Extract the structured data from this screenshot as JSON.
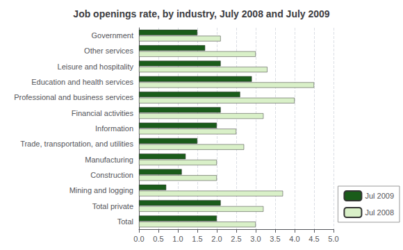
{
  "chart_data": {
    "type": "bar",
    "orientation": "horizontal",
    "title": "Job openings rate, by industry, July 2008 and July 2009",
    "categories": [
      "Total",
      "Total private",
      "Mining and logging",
      "Construction",
      "Manufacturing",
      "Trade, transportation, and utilities",
      "Information",
      "Financial activities",
      "Professional and business services",
      "Education and health services",
      "Leisure and hospitality",
      "Other services",
      "Government"
    ],
    "series": [
      {
        "name": "Jul 2009",
        "color": "#1a5c1a",
        "values": [
          2.0,
          2.1,
          0.7,
          1.1,
          1.2,
          1.5,
          2.0,
          2.1,
          2.6,
          2.9,
          2.1,
          1.7,
          1.5
        ]
      },
      {
        "name": "Jul 2008",
        "color": "#d9f0c8",
        "values": [
          3.0,
          3.2,
          3.7,
          2.0,
          2.0,
          2.7,
          2.5,
          3.2,
          4.0,
          4.5,
          3.3,
          3.0,
          2.1
        ]
      }
    ],
    "xlim": [
      0,
      5.0
    ],
    "xticks": [
      {
        "value": 0,
        "label": "0.0"
      },
      0.5,
      {
        "value": 1,
        "label": "1.0"
      },
      1.5,
      {
        "value": 2,
        "label": "2.0"
      },
      2.5,
      {
        "value": 3,
        "label": "3.0"
      },
      3.5,
      {
        "value": 4,
        "label": "4.0"
      },
      4.5,
      {
        "value": 5,
        "label": "5.0"
      }
    ],
    "grid": true,
    "legend": "lower right"
  }
}
